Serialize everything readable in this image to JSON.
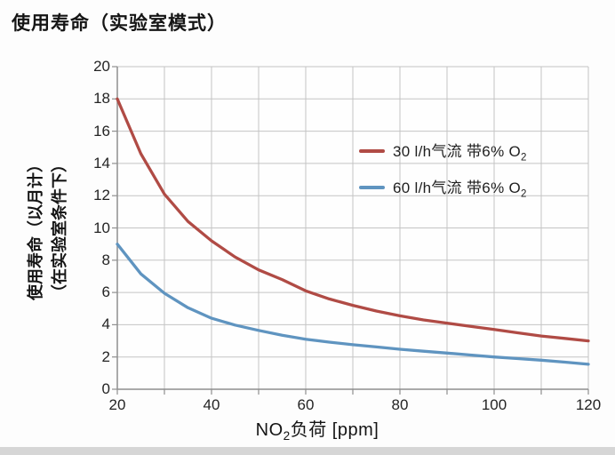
{
  "title": "使用寿命（实验室模式）",
  "y_axis_title_line1": "使用寿命（以月计）",
  "y_axis_title_line2": "（在实验室条件下）",
  "xlabel_parts": {
    "pre": "NO",
    "sub": "2",
    "post": "负荷  [ppm]"
  },
  "colors": {
    "series_red": "#b04b45",
    "series_blue": "#5f94c0",
    "grid": "#c4c4c4",
    "axis": "#8f8f8f",
    "text": "#1c1c1c",
    "bottom_strip": "#d6d6d6",
    "background": "#fdfdfd"
  },
  "chart_data": {
    "type": "line",
    "title": "使用寿命（实验室模式）",
    "xlabel": "NO2负荷 [ppm]",
    "ylabel": "使用寿命（以月计）（在实验室条件下）",
    "xlim": [
      20,
      120
    ],
    "ylim": [
      0,
      20
    ],
    "x_grid_step": 10,
    "y_grid_step": 2,
    "x_ticks": [
      20,
      40,
      60,
      80,
      100,
      120
    ],
    "y_ticks": [
      0,
      2,
      4,
      6,
      8,
      10,
      12,
      14,
      16,
      18,
      20
    ],
    "grid": true,
    "legend_position": "inside upper right",
    "series": [
      {
        "name": "30 l/h气流 带6% O2",
        "label_pre": "30 l/h气流 带6% O",
        "label_sub": "2",
        "color": "#b04b45",
        "x": [
          20,
          25,
          30,
          35,
          40,
          45,
          50,
          55,
          60,
          65,
          70,
          75,
          80,
          85,
          90,
          95,
          100,
          105,
          110,
          115,
          120
        ],
        "y": [
          18,
          14.6,
          12.1,
          10.4,
          9.2,
          8.2,
          7.4,
          6.8,
          6.1,
          5.6,
          5.2,
          4.85,
          4.55,
          4.3,
          4.1,
          3.9,
          3.7,
          3.5,
          3.3,
          3.15,
          3.0
        ]
      },
      {
        "name": "60 l/h气流 带6% O2",
        "label_pre": "60 l/h气流 带6% O",
        "label_sub": "2",
        "color": "#5f94c0",
        "x": [
          20,
          25,
          30,
          35,
          40,
          45,
          50,
          55,
          60,
          65,
          70,
          75,
          80,
          85,
          90,
          95,
          100,
          105,
          110,
          115,
          120
        ],
        "y": [
          9,
          7.15,
          5.95,
          5.05,
          4.4,
          3.98,
          3.65,
          3.35,
          3.1,
          2.92,
          2.76,
          2.62,
          2.48,
          2.36,
          2.24,
          2.12,
          2.0,
          1.9,
          1.8,
          1.68,
          1.55
        ]
      }
    ]
  }
}
